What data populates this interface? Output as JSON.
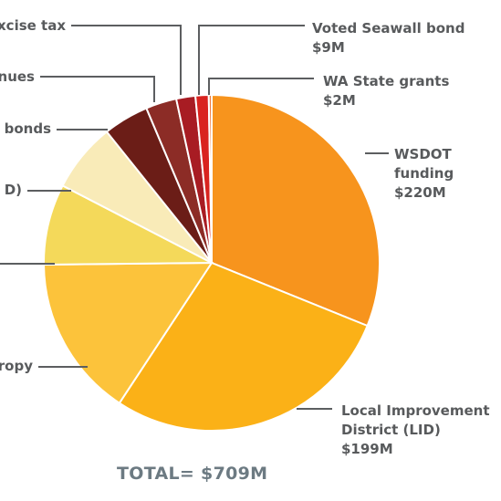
{
  "chart_data": {
    "type": "pie",
    "total_label": "TOTAL= $709M",
    "slices": [
      {
        "lines": [
          "WSDOT",
          "funding",
          "$220M"
        ],
        "value": 220,
        "color": "#f7941d"
      },
      {
        "lines": [
          "Local Improvement",
          "District (LID)",
          "$199M"
        ],
        "value": 199,
        "color": "#fbb117"
      },
      {
        "lines": [
          "ropy"
        ],
        "value": 110,
        "color": "#fcc33b"
      },
      {
        "lines": [
          ""
        ],
        "value": 55,
        "color": "#f4d95a"
      },
      {
        "lines": [
          "D)"
        ],
        "value": 47,
        "color": "#f9ebb8"
      },
      {
        "lines": [
          "bonds"
        ],
        "value": 31,
        "color": "#6b1d17"
      },
      {
        "lines": [
          "nues"
        ],
        "value": 21,
        "color": "#8c2c26"
      },
      {
        "lines": [
          "xcise tax"
        ],
        "value": 13,
        "color": "#a81c23"
      },
      {
        "lines": [
          "Voted Seawall bond",
          "$9M"
        ],
        "value": 9,
        "color": "#d9231f"
      },
      {
        "lines": [
          "WA State grants",
          "$2M"
        ],
        "value": 2,
        "color": "#ee7a3b"
      }
    ]
  }
}
